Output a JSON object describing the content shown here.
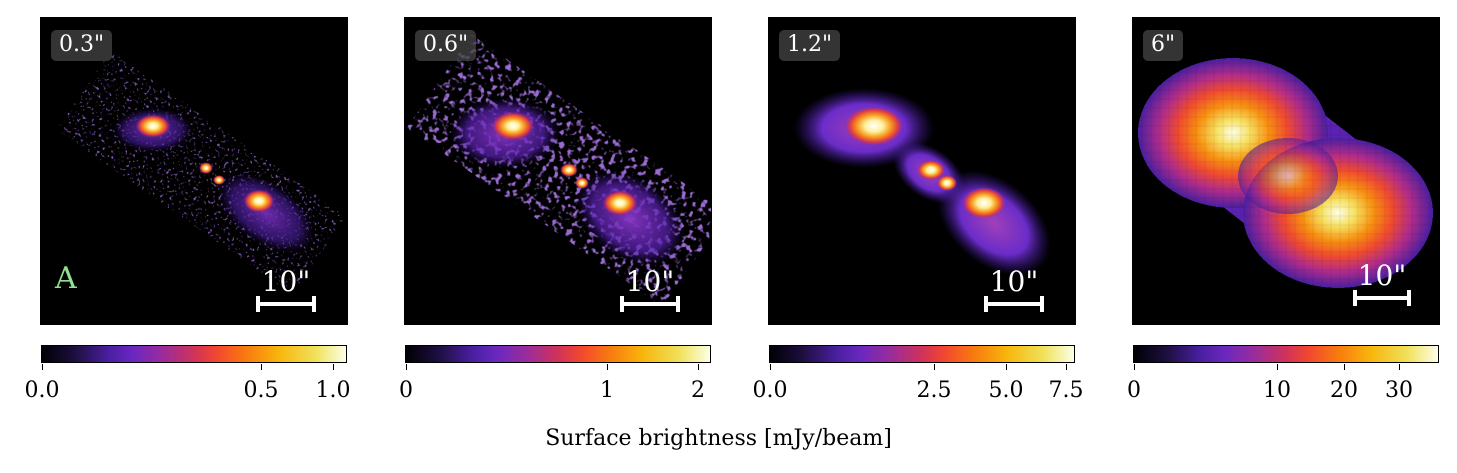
{
  "panels": [
    {
      "resolution": "0.3\"",
      "scalebar": "10\"",
      "letter": "A",
      "colorbar_ticks": [
        "0.0",
        "0.5",
        "1.0"
      ]
    },
    {
      "resolution": "0.6\"",
      "scalebar": "10\"",
      "colorbar_ticks": [
        "0",
        "1",
        "2"
      ]
    },
    {
      "resolution": "1.2\"",
      "scalebar": "10\"",
      "colorbar_ticks": [
        "0.0",
        "2.5",
        "5.0",
        "7.5"
      ]
    },
    {
      "resolution": "6\"",
      "scalebar": "10\"",
      "colorbar_ticks": [
        "0",
        "10",
        "20",
        "30"
      ]
    }
  ],
  "colorbar_label": "Surface brightness [mJy/beam]",
  "colors": {
    "letter": "#8fe08f",
    "background": "#000000"
  }
}
